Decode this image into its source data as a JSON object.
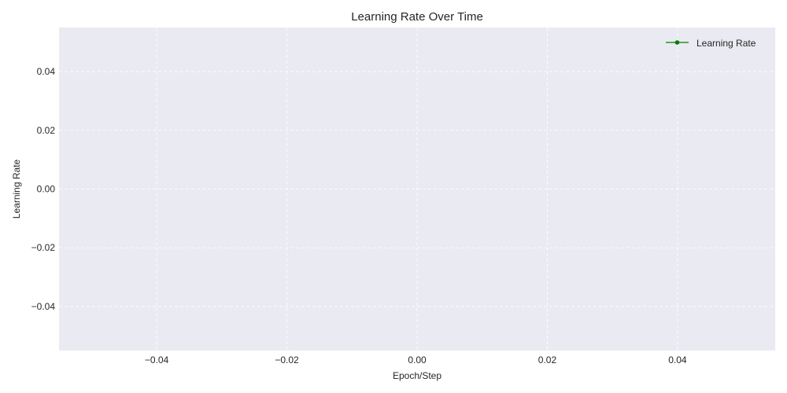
{
  "chart_data": {
    "type": "line",
    "title": "Learning Rate Over Time",
    "xlabel": "Epoch/Step",
    "ylabel": "Learning Rate",
    "xlim": [
      -0.055,
      0.055
    ],
    "ylim": [
      -0.055,
      0.055
    ],
    "x_ticks": [
      -0.04,
      -0.02,
      0.0,
      0.02,
      0.04
    ],
    "x_tick_labels": [
      "−0.04",
      "−0.02",
      "0.00",
      "0.02",
      "0.04"
    ],
    "y_ticks": [
      -0.04,
      -0.02,
      0.0,
      0.02,
      0.04
    ],
    "y_tick_labels": [
      "−0.04",
      "−0.02",
      "0.00",
      "0.02",
      "0.04"
    ],
    "grid": true,
    "grid_style": "dashed",
    "legend_position": "top-right",
    "series": [
      {
        "name": "Learning Rate",
        "color": "#008000",
        "marker": "circle",
        "x": [],
        "y": []
      }
    ]
  }
}
